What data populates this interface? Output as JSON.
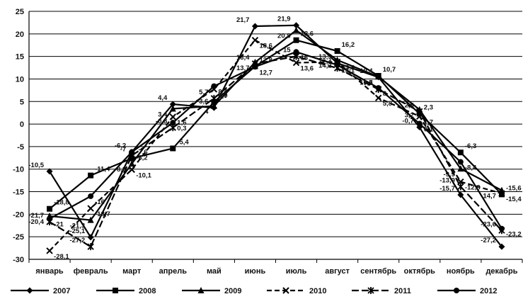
{
  "chart_data": {
    "type": "line",
    "categories": [
      "январь",
      "февраль",
      "март",
      "апрель",
      "май",
      "июнь",
      "июль",
      "август",
      "сентябрь",
      "октябрь",
      "ноябрь",
      "декабрь"
    ],
    "ylim": [
      -30,
      25
    ],
    "yticks": [
      -30,
      -25,
      -20,
      -15,
      -10,
      -5,
      0,
      5,
      10,
      15,
      20,
      25
    ],
    "grid": true,
    "legend_position": "bottom",
    "series": [
      {
        "name": "2007",
        "style": "solid",
        "marker": "diamond",
        "values": [
          -10.5,
          -25.1,
          -6.2,
          4.4,
          3.6,
          21.7,
          21.9,
          13.5,
          10.4,
          -0.7,
          -15.7,
          -27.2
        ],
        "labels": [
          "-10,5",
          "-25,1",
          "-6,2",
          "4,4",
          "3,6",
          "21,7",
          "21,9",
          "13,5",
          "10,4",
          "-0,7",
          "-15,7",
          "-27,2"
        ]
      },
      {
        "name": "2008",
        "style": "solid",
        "marker": "square",
        "values": [
          -18.8,
          -11.4,
          -7.6,
          -5.4,
          4.9,
          12.8,
          18.6,
          16.2,
          10.7,
          2.3,
          -6.3,
          -15.6
        ],
        "labels": [
          "-18,8",
          "-11,4",
          "-7,6",
          "-5,4",
          "4,9",
          "12,8",
          "18,6",
          "16,2",
          "10,7",
          "2,3",
          "-6,3",
          "-15,6"
        ]
      },
      {
        "name": "2009",
        "style": "solid",
        "marker": "triangle",
        "values": [
          -20.4,
          -21.3,
          -8.8,
          3.4,
          4,
          13.7,
          20.8,
          14.2,
          10.5,
          3.2,
          -9.9,
          -14.7
        ],
        "labels": [
          "-20,4",
          "-21,3",
          "-8,8",
          "3,4",
          "4",
          "13,7",
          "20,8",
          "14,2",
          "10,5",
          "3,2",
          "-9,9",
          "-14,7"
        ]
      },
      {
        "name": "2010",
        "style": "dash",
        "marker": "x",
        "values": [
          -28.1,
          -18.7,
          -10.1,
          1.6,
          7.7,
          18.6,
          13.6,
          13.8,
          5.8,
          1.7,
          -12.8,
          -15.4
        ],
        "labels": [
          "-28,1",
          "-18,7",
          "-10,1",
          "1,6",
          "7,7",
          "18,6",
          "13,6",
          "13,8",
          "5,8",
          "1,7",
          "-12,8",
          "-15,4"
        ]
      },
      {
        "name": "2011",
        "style": "longdash",
        "marker": "star",
        "values": [
          -21.7,
          -27.2,
          -7,
          -0.8,
          5.7,
          13.4,
          15,
          12.4,
          7.7,
          2.8,
          -13.9,
          -23.6
        ],
        "labels": [
          "-21,7",
          "-27,2",
          "-7",
          "-0,8",
          "5,7",
          "13,4",
          "15",
          "12,4",
          "7,7",
          "2,8",
          "-13,9",
          "-23,6"
        ]
      },
      {
        "name": "2012",
        "style": "solid",
        "marker": "circle",
        "values": [
          -21,
          -16,
          -6.2,
          0.3,
          8.4,
          12.7,
          16,
          13.1,
          8,
          0.1,
          -8.4,
          -23.2
        ],
        "labels": [
          "-21",
          "-16",
          "-6,2",
          "0,3",
          "8,4",
          "12,7",
          "16",
          "13,1",
          "8",
          "0,1",
          "-8,4",
          "-23,2"
        ]
      }
    ]
  }
}
